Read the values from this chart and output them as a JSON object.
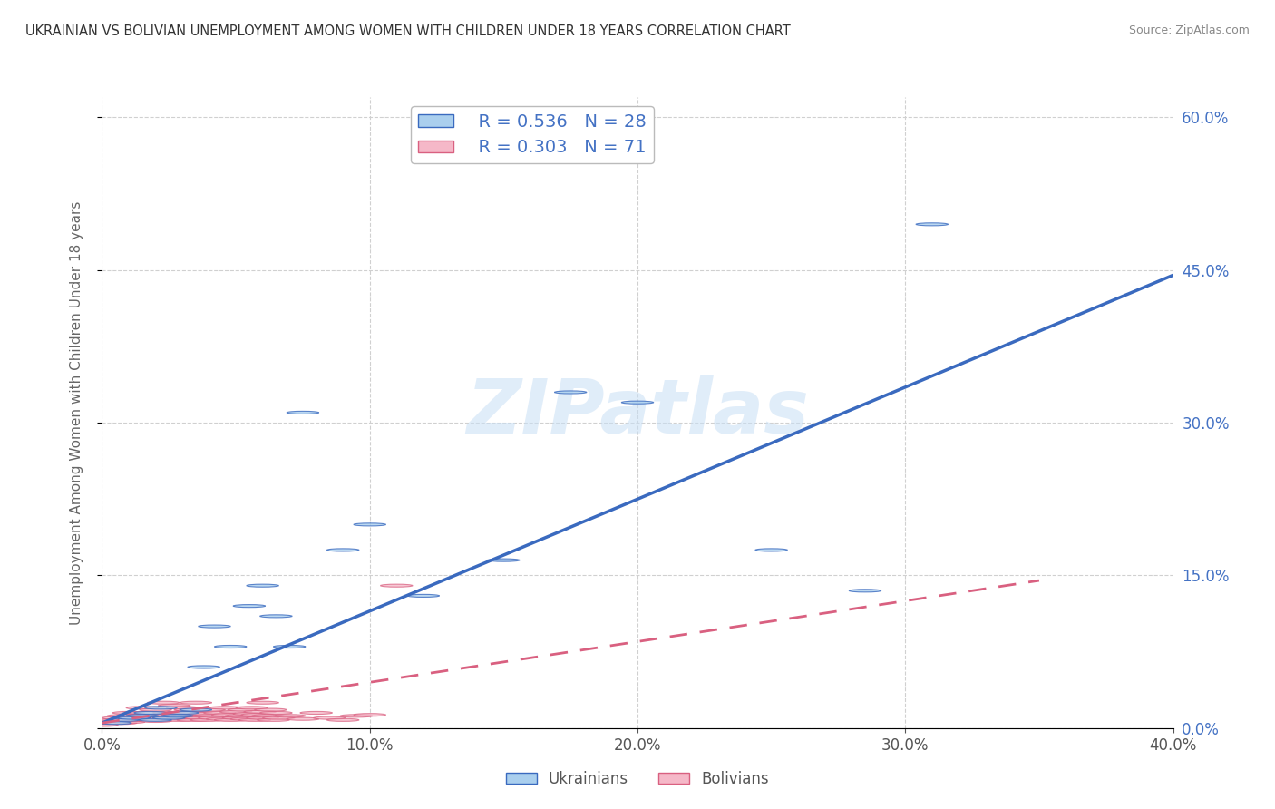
{
  "title": "UKRAINIAN VS BOLIVIAN UNEMPLOYMENT AMONG WOMEN WITH CHILDREN UNDER 18 YEARS CORRELATION CHART",
  "source": "Source: ZipAtlas.com",
  "ylabel": "Unemployment Among Women with Children Under 18 years",
  "xlim": [
    0.0,
    0.4
  ],
  "ylim": [
    0.0,
    0.62
  ],
  "xticks": [
    0.0,
    0.1,
    0.2,
    0.3,
    0.4
  ],
  "xtick_labels": [
    "0.0%",
    "10.0%",
    "20.0%",
    "30.0%",
    "40.0%"
  ],
  "yticks": [
    0.0,
    0.15,
    0.3,
    0.45,
    0.6
  ],
  "ytick_labels": [
    "0.0%",
    "15.0%",
    "30.0%",
    "45.0%",
    "60.0%"
  ],
  "ukraine_color": "#aacfee",
  "bolivia_color": "#f5b8c8",
  "ukraine_R": 0.536,
  "ukraine_N": 28,
  "bolivia_R": 0.303,
  "bolivia_N": 71,
  "ukraine_line_color": "#3a6abf",
  "bolivia_line_color": "#d96080",
  "watermark": "ZIPatlas",
  "background_color": "#ffffff",
  "grid_color": "#d0d0d0",
  "ukraine_scatter_x": [
    0.005,
    0.008,
    0.012,
    0.015,
    0.018,
    0.02,
    0.022,
    0.025,
    0.028,
    0.03,
    0.035,
    0.038,
    0.042,
    0.048,
    0.055,
    0.06,
    0.065,
    0.07,
    0.075,
    0.09,
    0.1,
    0.12,
    0.15,
    0.175,
    0.2,
    0.25,
    0.285,
    0.31
  ],
  "ukraine_scatter_y": [
    0.005,
    0.008,
    0.01,
    0.012,
    0.015,
    0.008,
    0.02,
    0.01,
    0.012,
    0.015,
    0.018,
    0.06,
    0.1,
    0.08,
    0.12,
    0.14,
    0.11,
    0.08,
    0.31,
    0.175,
    0.2,
    0.13,
    0.165,
    0.33,
    0.32,
    0.175,
    0.135,
    0.495
  ],
  "bolivia_scatter_x": [
    0.0,
    0.002,
    0.003,
    0.005,
    0.006,
    0.007,
    0.008,
    0.009,
    0.01,
    0.01,
    0.012,
    0.013,
    0.015,
    0.015,
    0.016,
    0.017,
    0.018,
    0.019,
    0.02,
    0.02,
    0.022,
    0.023,
    0.025,
    0.025,
    0.026,
    0.027,
    0.028,
    0.029,
    0.03,
    0.03,
    0.032,
    0.033,
    0.034,
    0.035,
    0.035,
    0.037,
    0.038,
    0.039,
    0.04,
    0.04,
    0.042,
    0.044,
    0.045,
    0.046,
    0.047,
    0.048,
    0.05,
    0.051,
    0.052,
    0.053,
    0.054,
    0.055,
    0.056,
    0.057,
    0.058,
    0.059,
    0.06,
    0.06,
    0.062,
    0.063,
    0.064,
    0.065,
    0.066,
    0.07,
    0.075,
    0.08,
    0.085,
    0.09,
    0.095,
    0.1,
    0.11
  ],
  "bolivia_scatter_y": [
    0.003,
    0.005,
    0.007,
    0.008,
    0.01,
    0.005,
    0.012,
    0.007,
    0.006,
    0.015,
    0.01,
    0.008,
    0.012,
    0.02,
    0.015,
    0.01,
    0.008,
    0.012,
    0.007,
    0.018,
    0.012,
    0.025,
    0.01,
    0.015,
    0.009,
    0.022,
    0.008,
    0.013,
    0.01,
    0.02,
    0.012,
    0.018,
    0.008,
    0.015,
    0.025,
    0.01,
    0.014,
    0.008,
    0.018,
    0.012,
    0.01,
    0.015,
    0.009,
    0.02,
    0.013,
    0.008,
    0.016,
    0.01,
    0.012,
    0.018,
    0.009,
    0.014,
    0.02,
    0.008,
    0.013,
    0.016,
    0.01,
    0.025,
    0.012,
    0.018,
    0.008,
    0.015,
    0.01,
    0.012,
    0.009,
    0.015,
    0.01,
    0.008,
    0.012,
    0.013,
    0.14
  ],
  "ukr_line_x0": 0.0,
  "ukr_line_y0": 0.005,
  "ukr_line_x1": 0.4,
  "ukr_line_y1": 0.445,
  "bol_line_x0": 0.0,
  "bol_line_y0": 0.005,
  "bol_line_x1": 0.35,
  "bol_line_y1": 0.145
}
